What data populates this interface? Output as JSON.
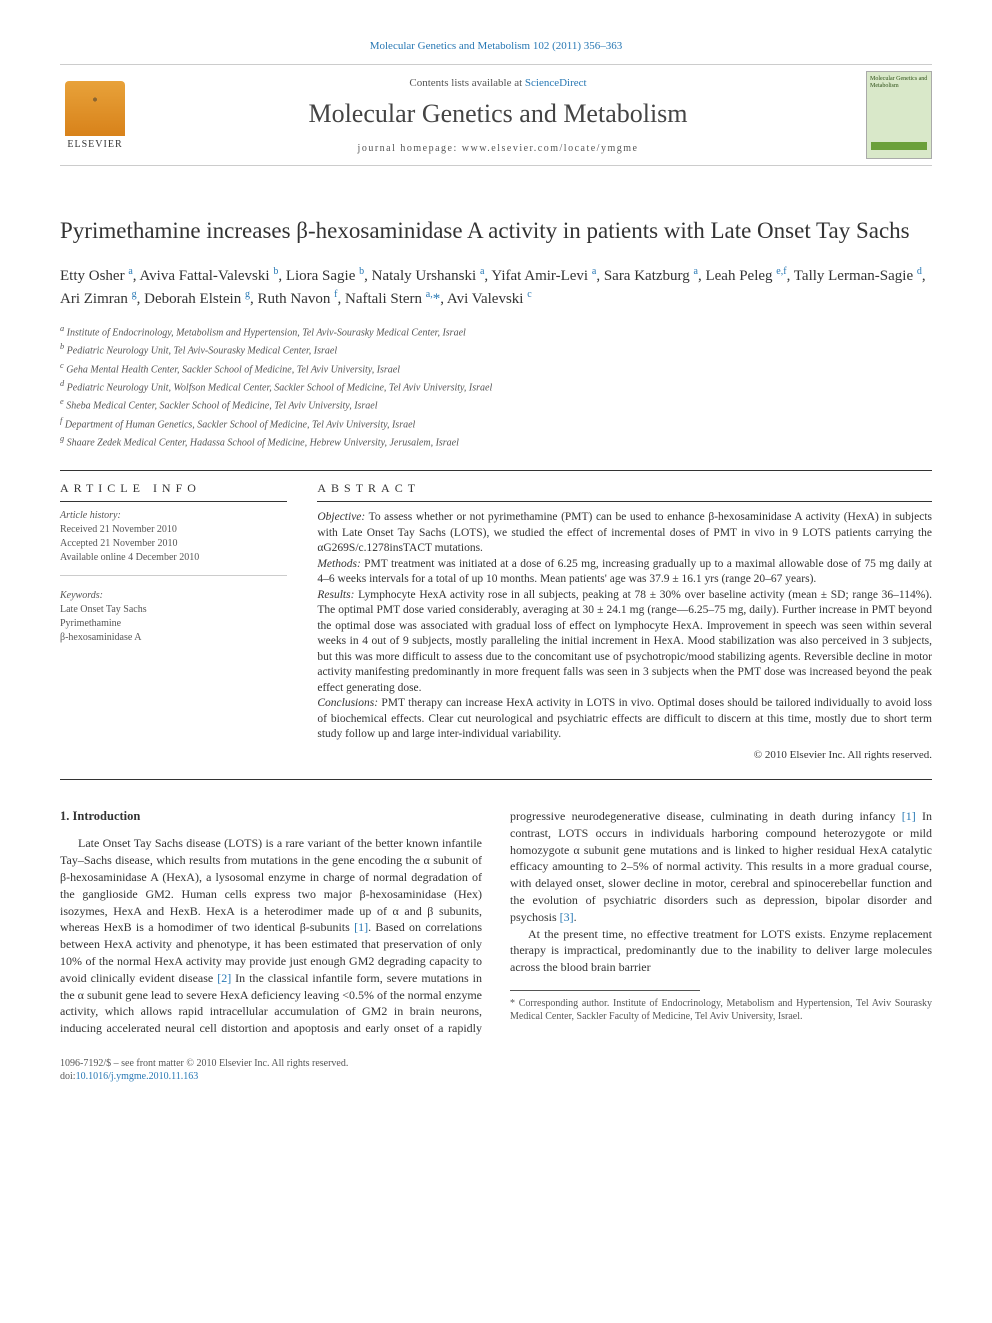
{
  "header": {
    "citation": "Molecular Genetics and Metabolism 102 (2011) 356–363",
    "sciencedirect_prefix": "Contents lists available at ",
    "sciencedirect": "ScienceDirect",
    "journal_name": "Molecular Genetics and Metabolism",
    "homepage_prefix": "journal homepage: ",
    "homepage": "www.elsevier.com/locate/ymgme",
    "elsevier": "ELSEVIER",
    "cover_title": "Molecular Genetics and Metabolism"
  },
  "title": "Pyrimethamine increases β-hexosaminidase A activity in patients with Late Onset Tay Sachs",
  "authors_html": "Etty Osher <sup>a</sup>, Aviva Fattal-Valevski <sup>b</sup>, Liora Sagie <sup>b</sup>, Nataly Urshanski <sup>a</sup>, Yifat Amir-Levi <sup>a</sup>, Sara Katzburg <sup>a</sup>, Leah Peleg <sup>e,f</sup>, Tally Lerman-Sagie <sup>d</sup>, Ari Zimran <sup>g</sup>, Deborah Elstein <sup>g</sup>, Ruth Navon <sup>f</sup>, Naftali Stern <sup>a,</sup><span class='star-sup'>*</span>, Avi Valevski <sup>c</sup>",
  "affiliations": [
    "a Institute of Endocrinology, Metabolism and Hypertension, Tel Aviv-Sourasky Medical Center, Israel",
    "b Pediatric Neurology Unit, Tel Aviv-Sourasky Medical Center, Israel",
    "c Geha Mental Health Center, Sackler School of Medicine, Tel Aviv University, Israel",
    "d Pediatric Neurology Unit, Wolfson Medical Center, Sackler School of Medicine, Tel Aviv University, Israel",
    "e Sheba Medical Center, Sackler School of Medicine, Tel Aviv University, Israel",
    "f Department of Human Genetics, Sackler School of Medicine, Tel Aviv University, Israel",
    "g Shaare Zedek Medical Center, Hadassa School of Medicine, Hebrew University, Jerusalem, Israel"
  ],
  "article_info": {
    "heading": "ARTICLE INFO",
    "history_label": "Article history:",
    "history": [
      "Received 21 November 2010",
      "Accepted 21 November 2010",
      "Available online 4 December 2010"
    ],
    "keywords_label": "Keywords:",
    "keywords": [
      "Late Onset Tay Sachs",
      "Pyrimethamine",
      "β-hexosaminidase A"
    ]
  },
  "abstract": {
    "heading": "ABSTRACT",
    "objective_label": "Objective:",
    "objective": " To assess whether or not pyrimethamine (PMT) can be used to enhance β-hexosaminidase A activity (HexA) in subjects with Late Onset Tay Sachs (LOTS), we studied the effect of incremental doses of PMT in vivo in 9 LOTS patients carrying the αG269S/c.1278insTACT mutations.",
    "methods_label": "Methods:",
    "methods": " PMT treatment was initiated at a dose of 6.25 mg, increasing gradually up to a maximal allowable dose of 75 mg daily at 4–6 weeks intervals for a total of up 10 months. Mean patients' age was 37.9 ± 16.1 yrs (range 20–67 years).",
    "results_label": "Results:",
    "results": " Lymphocyte HexA activity rose in all subjects, peaking at 78 ± 30% over baseline activity (mean ± SD; range 36–114%). The optimal PMT dose varied considerably, averaging at 30 ± 24.1 mg (range—6.25–75 mg, daily). Further increase in PMT beyond the optimal dose was associated with gradual loss of effect on lymphocyte HexA. Improvement in speech was seen within several weeks in 4 out of 9 subjects, mostly paralleling the initial increment in HexA. Mood stabilization was also perceived in 3 subjects, but this was more difficult to assess due to the concomitant use of psychotropic/mood stabilizing agents. Reversible decline in motor activity manifesting predominantly in more frequent falls was seen in 3 subjects when the PMT dose was increased beyond the peak effect generating dose.",
    "conclusions_label": "Conclusions:",
    "conclusions": " PMT therapy can increase HexA activity in LOTS in vivo. Optimal doses should be tailored individually to avoid loss of biochemical effects. Clear cut neurological and psychiatric effects are difficult to discern at this time, mostly due to short term study follow up and large inter-individual variability.",
    "copyright": "© 2010 Elsevier Inc. All rights reserved."
  },
  "intro": {
    "heading": "1. Introduction",
    "p1": "Late Onset Tay Sachs disease (LOTS) is a rare variant of the better known infantile Tay–Sachs disease, which results from mutations in the gene encoding the α subunit of β-hexosaminidase A (HexA), a lysosomal enzyme in charge of normal degradation of the ganglioside GM2. Human cells express two major β-hexosaminidase (Hex) isozymes, HexA and HexB. HexA is a heterodimer made up of α and β subunits, whereas HexB is a homodimer of two identical β-subunits ",
    "ref1": "[1]",
    "p1b": ". Based on correlations between HexA activity and phenotype, it has been estimated that preservation of only 10% of the normal HexA activity may provide just enough GM2 degrading capacity to avoid ",
    "p2a": "clinically evident disease ",
    "ref2": "[2]",
    "p2b": " In the classical infantile form, severe mutations in the α subunit gene lead to severe HexA deficiency leaving <0.5% of the normal enzyme activity, which allows rapid intracellular accumulation of GM2 in brain neurons, inducing accelerated neural cell distortion and apoptosis and early onset of a rapidly progressive neurodegenerative disease, culminating in death during infancy ",
    "ref1b": "[1]",
    "p2c": " In contrast, LOTS occurs in individuals harboring compound heterozygote or mild homozygote α subunit gene mutations and is linked to higher residual HexA catalytic efficacy amounting to 2–5% of normal activity. This results in a more gradual course, with delayed onset, slower decline in motor, cerebral and spinocerebellar function and the evolution of psychiatric disorders such as depression, bipolar disorder and psychosis ",
    "ref3": "[3]",
    "p2d": ".",
    "p3": "At the present time, no effective treatment for LOTS exists. Enzyme replacement therapy is impractical, predominantly due to the inability to deliver large molecules across the blood brain barrier"
  },
  "footnote": {
    "text": "* Corresponding author. Institute of Endocrinology, Metabolism and Hypertension, Tel Aviv Sourasky Medical Center, Sackler Faculty of Medicine, Tel Aviv University, Israel."
  },
  "footer": {
    "issn": "1096-7192/$ – see front matter © 2010 Elsevier Inc. All rights reserved.",
    "doi_label": "doi:",
    "doi": "10.1016/j.ymgme.2010.11.163"
  },
  "colors": {
    "link": "#2878b4",
    "text": "#333333",
    "muted": "#555555",
    "rule": "#333333",
    "elsevier_orange": "#e8a23a",
    "cover_bg": "#d9e8c9",
    "cover_bar": "#6ba03a"
  }
}
